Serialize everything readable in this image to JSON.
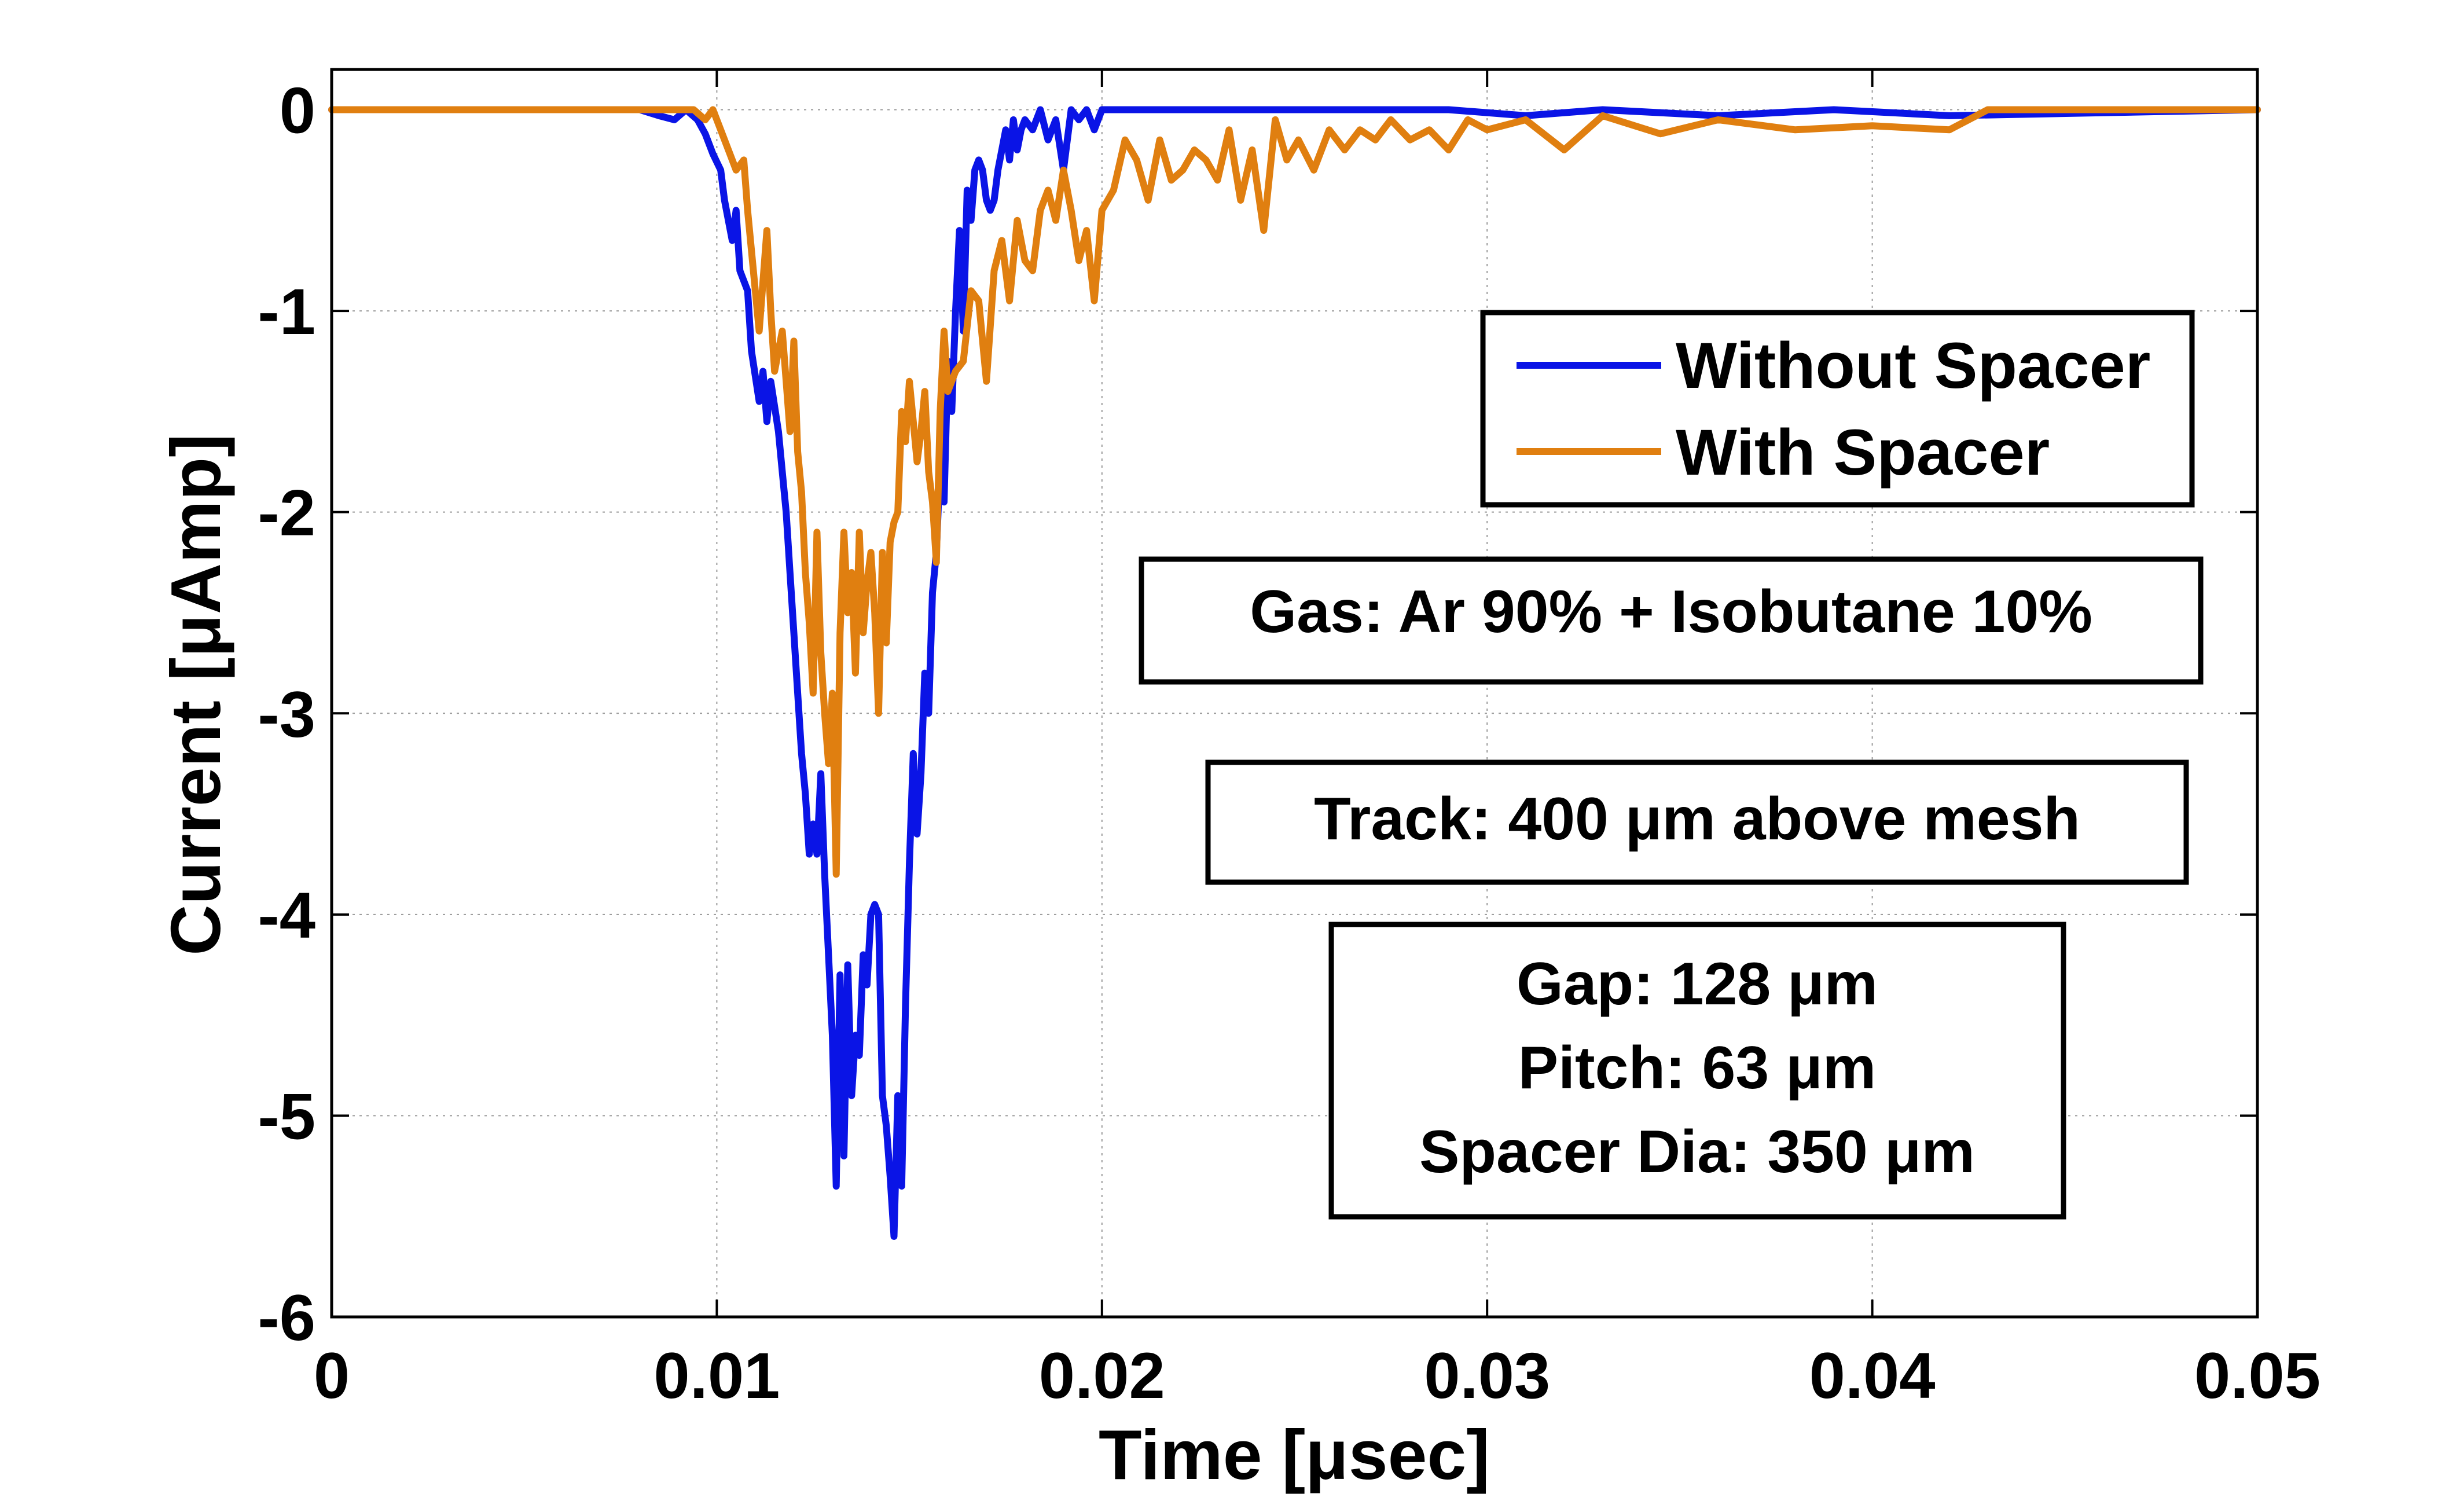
{
  "chart_data": {
    "type": "line",
    "title": "",
    "xlabel": "Time [μsec]",
    "ylabel": "Current [μAmp]",
    "xlim": [
      0,
      0.05
    ],
    "ylim": [
      -6,
      0.2
    ],
    "xticks": [
      0,
      0.01,
      0.02,
      0.03,
      0.04,
      0.05
    ],
    "xtick_labels": [
      "0",
      "0.01",
      "0.02",
      "0.03",
      "0.04",
      "0.05"
    ],
    "yticks": [
      0,
      -1,
      -2,
      -3,
      -4,
      -5,
      -6
    ],
    "ytick_labels": [
      "0",
      "-1",
      "-2",
      "-3",
      "-4",
      "-5",
      "-6"
    ],
    "grid": true,
    "legend_position": "upper-right",
    "series": [
      {
        "name": "Without Spacer",
        "color": "#0a14e6",
        "x": [
          0,
          0.008,
          0.0085,
          0.0089,
          0.0092,
          0.0095,
          0.0097,
          0.0099,
          0.0101,
          0.0102,
          0.0104,
          0.0105,
          0.0106,
          0.0108,
          0.0109,
          0.0111,
          0.0112,
          0.0113,
          0.0114,
          0.0116,
          0.0117,
          0.0118,
          0.0119,
          0.012,
          0.0121,
          0.0122,
          0.0123,
          0.0124,
          0.0125,
          0.0126,
          0.0127,
          0.0128,
          0.0129,
          0.013,
          0.0131,
          0.0132,
          0.0133,
          0.0134,
          0.0135,
          0.0136,
          0.0137,
          0.0138,
          0.0139,
          0.014,
          0.0141,
          0.0142,
          0.0143,
          0.0144,
          0.0145,
          0.0146,
          0.0147,
          0.0148,
          0.0149,
          0.015,
          0.0151,
          0.0152,
          0.0153,
          0.0154,
          0.0155,
          0.0156,
          0.0157,
          0.0158,
          0.0159,
          0.016,
          0.0161,
          0.0162,
          0.0163,
          0.0164,
          0.0165,
          0.0166,
          0.0167,
          0.0168,
          0.0169,
          0.017,
          0.0171,
          0.0172,
          0.0173,
          0.0174,
          0.0175,
          0.0176,
          0.0177,
          0.0178,
          0.0179,
          0.018,
          0.0182,
          0.0184,
          0.0186,
          0.0188,
          0.019,
          0.0192,
          0.0194,
          0.0196,
          0.0198,
          0.02,
          0.0202,
          0.025,
          0.029,
          0.031,
          0.033,
          0.036,
          0.039,
          0.042,
          0.05
        ],
        "y": [
          0,
          0,
          -0.03,
          -0.05,
          0,
          -0.05,
          -0.12,
          -0.22,
          -0.3,
          -0.45,
          -0.65,
          -0.5,
          -0.8,
          -0.9,
          -1.2,
          -1.45,
          -1.3,
          -1.55,
          -1.35,
          -1.6,
          -1.8,
          -2.0,
          -2.3,
          -2.6,
          -2.9,
          -3.2,
          -3.4,
          -3.7,
          -3.55,
          -3.7,
          -3.3,
          -3.8,
          -4.2,
          -4.6,
          -5.35,
          -4.3,
          -5.2,
          -4.25,
          -4.9,
          -4.6,
          -4.7,
          -4.2,
          -4.35,
          -4.0,
          -3.95,
          -4.0,
          -4.9,
          -5.05,
          -5.3,
          -5.6,
          -4.9,
          -5.35,
          -4.45,
          -3.75,
          -3.2,
          -3.6,
          -3.3,
          -2.8,
          -3.0,
          -2.4,
          -2.2,
          -1.75,
          -1.95,
          -1.25,
          -1.5,
          -1.0,
          -0.6,
          -1.1,
          -0.4,
          -0.55,
          -0.3,
          -0.25,
          -0.3,
          -0.45,
          -0.5,
          -0.45,
          -0.3,
          -0.2,
          -0.1,
          -0.25,
          -0.05,
          -0.2,
          -0.1,
          -0.05,
          -0.1,
          0,
          -0.15,
          -0.05,
          -0.3,
          0,
          -0.05,
          0,
          -0.1,
          0,
          0,
          0,
          0,
          -0.03,
          0,
          -0.03,
          0,
          -0.03,
          0
        ]
      },
      {
        "name": "With Spacer",
        "color": "#e07f10",
        "x": [
          0,
          0.009,
          0.0094,
          0.0097,
          0.0099,
          0.0101,
          0.0103,
          0.0105,
          0.0107,
          0.0108,
          0.011,
          0.0111,
          0.0113,
          0.0114,
          0.0115,
          0.0117,
          0.0118,
          0.0119,
          0.012,
          0.0121,
          0.0122,
          0.0123,
          0.0124,
          0.0125,
          0.0126,
          0.0127,
          0.0128,
          0.0129,
          0.013,
          0.0131,
          0.0132,
          0.0133,
          0.0134,
          0.0135,
          0.0136,
          0.0137,
          0.0138,
          0.0139,
          0.014,
          0.0141,
          0.0142,
          0.0143,
          0.0144,
          0.0145,
          0.0146,
          0.0147,
          0.0148,
          0.0149,
          0.015,
          0.0151,
          0.0152,
          0.0153,
          0.0154,
          0.0155,
          0.0156,
          0.0157,
          0.0158,
          0.0159,
          0.016,
          0.0162,
          0.0164,
          0.0166,
          0.0168,
          0.017,
          0.0172,
          0.0174,
          0.0176,
          0.0178,
          0.018,
          0.0182,
          0.0184,
          0.0186,
          0.0188,
          0.019,
          0.0192,
          0.0194,
          0.0196,
          0.0198,
          0.02,
          0.0203,
          0.0206,
          0.0209,
          0.0212,
          0.0215,
          0.0218,
          0.0221,
          0.0224,
          0.0227,
          0.023,
          0.0233,
          0.0236,
          0.0239,
          0.0242,
          0.0245,
          0.0248,
          0.0251,
          0.0255,
          0.0259,
          0.0263,
          0.0267,
          0.0271,
          0.0275,
          0.028,
          0.0285,
          0.029,
          0.0295,
          0.03,
          0.031,
          0.032,
          0.033,
          0.0345,
          0.036,
          0.038,
          0.04,
          0.042,
          0.043,
          0.05
        ],
        "y": [
          0,
          0,
          0,
          -0.05,
          0,
          -0.1,
          -0.2,
          -0.3,
          -0.25,
          -0.5,
          -0.9,
          -1.1,
          -0.6,
          -1.0,
          -1.3,
          -1.1,
          -1.35,
          -1.6,
          -1.15,
          -1.7,
          -1.9,
          -2.3,
          -2.55,
          -2.9,
          -2.1,
          -2.7,
          -3.0,
          -3.25,
          -2.9,
          -3.8,
          -2.6,
          -2.1,
          -2.5,
          -2.3,
          -2.8,
          -2.1,
          -2.6,
          -2.35,
          -2.2,
          -2.5,
          -3.0,
          -2.2,
          -2.65,
          -2.15,
          -2.05,
          -2.0,
          -1.5,
          -1.65,
          -1.35,
          -1.55,
          -1.75,
          -1.6,
          -1.4,
          -1.8,
          -1.95,
          -2.25,
          -1.5,
          -1.1,
          -1.4,
          -1.3,
          -1.25,
          -0.9,
          -0.95,
          -1.35,
          -0.8,
          -0.65,
          -0.95,
          -0.55,
          -0.75,
          -0.8,
          -0.5,
          -0.4,
          -0.55,
          -0.3,
          -0.5,
          -0.75,
          -0.6,
          -0.95,
          -0.5,
          -0.4,
          -0.15,
          -0.25,
          -0.45,
          -0.15,
          -0.35,
          -0.3,
          -0.2,
          -0.25,
          -0.35,
          -0.1,
          -0.45,
          -0.2,
          -0.6,
          -0.05,
          -0.25,
          -0.15,
          -0.3,
          -0.1,
          -0.2,
          -0.1,
          -0.15,
          -0.05,
          -0.15,
          -0.1,
          -0.2,
          -0.05,
          -0.1,
          -0.05,
          -0.2,
          -0.03,
          -0.12,
          -0.05,
          -0.1,
          -0.08,
          -0.1,
          0,
          0
        ]
      }
    ],
    "annotations": [
      "Gas: Ar 90% + Isobutane 10%",
      "Track: 400 μm above mesh",
      "Gap: 128 μm",
      "Pitch: 63 μm",
      "Spacer Dia: 350 μm"
    ]
  }
}
